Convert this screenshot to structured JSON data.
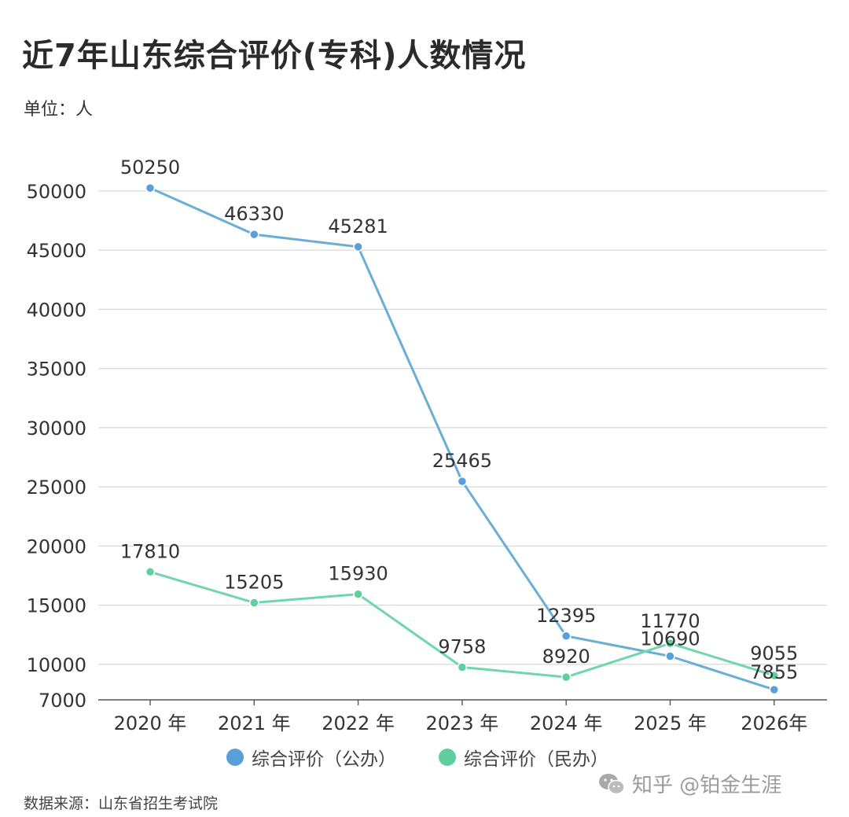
{
  "header": {
    "title": "近7年山东综合评价(专科)人数情况",
    "unit": "单位：人"
  },
  "footer": {
    "source": "数据来源：山东省招生考试院",
    "watermark": "知乎 @铂金生涯",
    "watermark_icon": "wechat-icon"
  },
  "chart_data": {
    "type": "line",
    "title": "近7年山东综合评价(专科)人数情况",
    "xlabel": "",
    "ylabel": "",
    "categories": [
      "2020 年",
      "2021 年",
      "2022 年",
      "2023 年",
      "2024 年",
      "2025 年",
      "2026年"
    ],
    "yticks": [
      7000,
      10000,
      15000,
      20000,
      25000,
      30000,
      35000,
      40000,
      45000,
      50000
    ],
    "ylim": [
      7000,
      50250
    ],
    "grid": true,
    "legend_position": "bottom",
    "series": [
      {
        "name": "综合评价（公办）",
        "color": "#6aaed6",
        "marker_color": "#5b9fd8",
        "values": [
          50250,
          46330,
          45281,
          25465,
          12395,
          10690,
          7855
        ]
      },
      {
        "name": "综合评价（民办）",
        "color": "#6fd6ad",
        "marker_color": "#5fcf9e",
        "values": [
          17810,
          15205,
          15930,
          9758,
          8920,
          11770,
          9055
        ]
      }
    ]
  }
}
